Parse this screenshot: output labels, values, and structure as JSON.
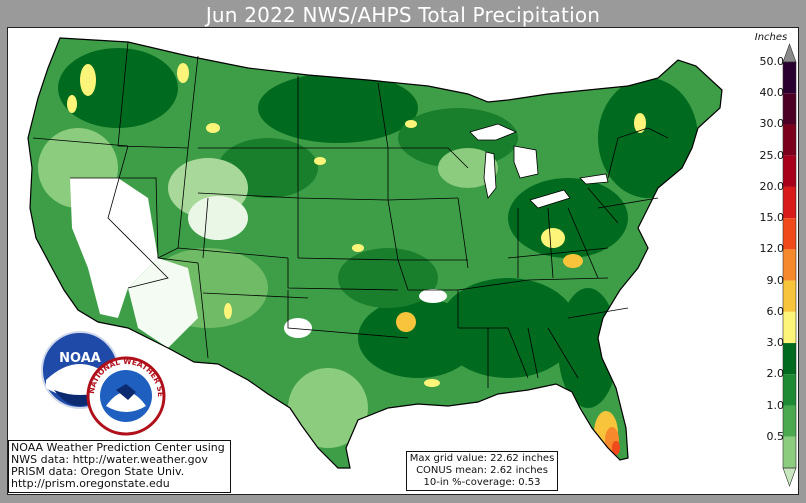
{
  "title": "Jun 2022 NWS/AHPS Total Precipitation",
  "legend": {
    "title": "Inches",
    "levels": [
      {
        "label": "50.0",
        "color": "#2a0030"
      },
      {
        "label": "40.0",
        "color": "#4b0024"
      },
      {
        "label": "30.0",
        "color": "#7a001c"
      },
      {
        "label": "25.0",
        "color": "#a8001a"
      },
      {
        "label": "20.0",
        "color": "#d81a1a"
      },
      {
        "label": "15.0",
        "color": "#f04a1a"
      },
      {
        "label": "12.0",
        "color": "#f5892c"
      },
      {
        "label": "9.0",
        "color": "#f7c43c"
      },
      {
        "label": "6.0",
        "color": "#fdf57a"
      },
      {
        "label": "3.0",
        "color": "#006b1e"
      },
      {
        "label": "2.0",
        "color": "#1f8a34"
      },
      {
        "label": "1.0",
        "color": "#4aa84f"
      },
      {
        "label": "0.5",
        "color": "#8ccc7f"
      }
    ],
    "under_color": "#c9e7bf",
    "over_color": "#8a8a8a"
  },
  "info_left": [
    "NOAA Weather Prediction Center using",
    "NWS data: http://water.weather.gov",
    "PRISM data: Oregon State Univ.",
    "http://prism.oregonstate.edu"
  ],
  "info_center": [
    "Max grid value: 22.62 inches",
    "CONUS mean: 2.62 inches",
    "10-in %-coverage: 0.53"
  ],
  "logos": {
    "noaa": "NOAA",
    "nws": "NATIONAL WEATHER SERVICE"
  }
}
